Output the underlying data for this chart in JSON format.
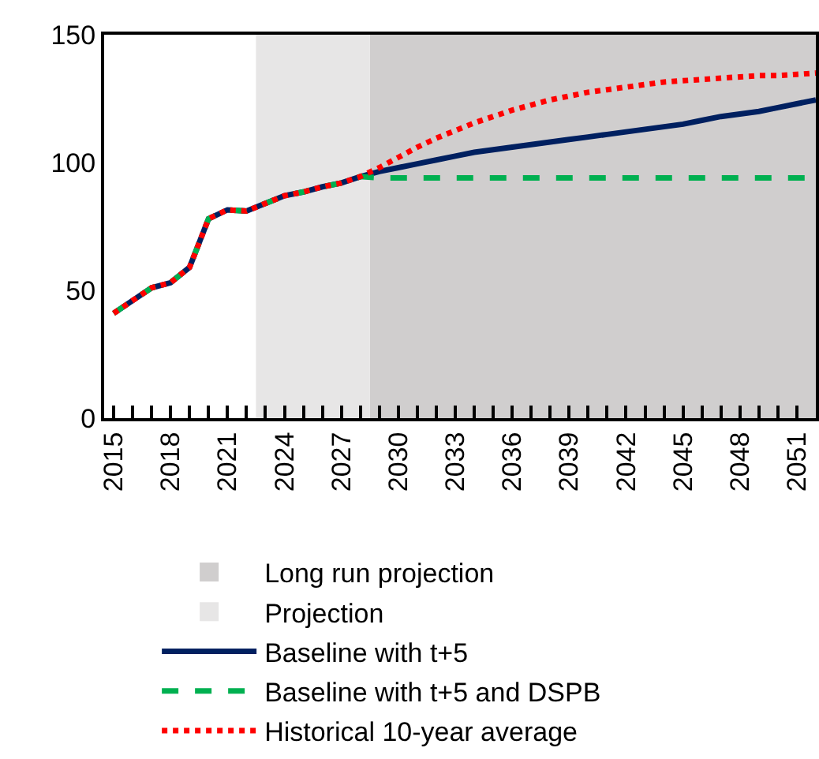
{
  "chart_data": {
    "type": "line",
    "x": [
      2015,
      2016,
      2017,
      2018,
      2019,
      2020,
      2021,
      2022,
      2023,
      2024,
      2025,
      2026,
      2027,
      2028,
      2029,
      2030,
      2031,
      2032,
      2033,
      2034,
      2035,
      2036,
      2037,
      2038,
      2039,
      2040,
      2041,
      2042,
      2043,
      2044,
      2045,
      2046,
      2047,
      2048,
      2049,
      2050,
      2051,
      2052
    ],
    "series": [
      {
        "name": "Baseline with t+5",
        "color": "#002060",
        "line_style": "solid",
        "values": [
          41,
          46,
          51,
          53,
          59,
          78,
          81.5,
          81,
          84,
          87,
          88.5,
          90.5,
          92,
          94.5,
          96.5,
          98,
          99.5,
          101,
          102.5,
          104,
          105,
          106,
          107,
          108,
          109,
          110,
          111,
          112,
          113,
          114,
          115,
          116.5,
          118,
          119,
          120,
          121.5,
          123,
          124.5
        ]
      },
      {
        "name": "Baseline with t+5 and DSPB",
        "color": "#00b050",
        "line_style": "dashed",
        "values": [
          41,
          46,
          51,
          53,
          59,
          78,
          81.5,
          81,
          84,
          87,
          88.5,
          90.5,
          92,
          94.5,
          94,
          94,
          94,
          94,
          94,
          94,
          94,
          94,
          94,
          94,
          94,
          94,
          94,
          94,
          94,
          94,
          94,
          94,
          94,
          94,
          94,
          94,
          94,
          94
        ]
      },
      {
        "name": "Historical 10-year average",
        "color": "#ff0000",
        "line_style": "dotted",
        "values": [
          41,
          46,
          51,
          53,
          59,
          78,
          81.5,
          81,
          84,
          87,
          88.5,
          90.5,
          92,
          94.5,
          98,
          102,
          106,
          109.5,
          112.5,
          115.5,
          118,
          120.5,
          122.5,
          124.5,
          126,
          127.5,
          128.5,
          129.5,
          130.5,
          131.5,
          132,
          132.5,
          133,
          133.5,
          134,
          134,
          134.5,
          135
        ]
      }
    ],
    "bands": [
      {
        "axis": "x",
        "from": 2028.5,
        "to": 2052,
        "label": "Long run projection",
        "color": "#d0cece"
      },
      {
        "axis": "x",
        "from": 2022.5,
        "to": 2028.5,
        "label": "Projection",
        "color": "#e7e6e6"
      }
    ],
    "xlim": [
      2014.5,
      2052
    ],
    "xticks": [
      2015,
      {
        "value": 2016,
        "label": null
      },
      {
        "value": 2017,
        "label": null
      },
      2018,
      {
        "value": 2019,
        "label": null
      },
      {
        "value": 2020,
        "label": null
      },
      2021,
      {
        "value": 2022,
        "label": null
      },
      {
        "value": 2023,
        "label": null
      },
      2024,
      {
        "value": 2025,
        "label": null
      },
      {
        "value": 2026,
        "label": null
      },
      2027,
      {
        "value": 2028,
        "label": null
      },
      {
        "value": 2029,
        "label": null
      },
      2030,
      {
        "value": 2031,
        "label": null
      },
      {
        "value": 2032,
        "label": null
      },
      2033,
      {
        "value": 2034,
        "label": null
      },
      {
        "value": 2035,
        "label": null
      },
      2036,
      {
        "value": 2037,
        "label": null
      },
      {
        "value": 2038,
        "label": null
      },
      2039,
      {
        "value": 2040,
        "label": null
      },
      {
        "value": 2041,
        "label": null
      },
      2042,
      {
        "value": 2043,
        "label": null
      },
      {
        "value": 2044,
        "label": null
      },
      2045,
      {
        "value": 2046,
        "label": null
      },
      {
        "value": 2047,
        "label": null
      },
      2048,
      {
        "value": 2049,
        "label": null
      },
      {
        "value": 2050,
        "label": null
      },
      2051,
      {
        "value": 2052,
        "label": null
      }
    ],
    "ylim": [
      0,
      150
    ],
    "yticks": [
      0,
      50,
      100,
      150
    ],
    "grid": false,
    "legend": "bottom",
    "marker": "none"
  }
}
